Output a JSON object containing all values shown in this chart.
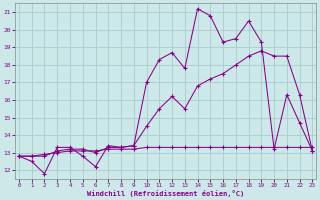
{
  "background_color": "#cce8e8",
  "grid_color": "#aacccc",
  "line_color": "#880088",
  "x_label": "Windchill (Refroidissement éolien,°C)",
  "x_label_color": "#880088",
  "ylim": [
    11.5,
    21.5
  ],
  "xlim": [
    -0.3,
    23.3
  ],
  "yticks": [
    12,
    13,
    14,
    15,
    16,
    17,
    18,
    19,
    20,
    21
  ],
  "xticks": [
    0,
    1,
    2,
    3,
    4,
    5,
    6,
    7,
    8,
    9,
    10,
    11,
    12,
    13,
    14,
    15,
    16,
    17,
    18,
    19,
    20,
    21,
    22,
    23
  ],
  "series1_x": [
    0,
    1,
    2,
    3,
    4,
    5,
    6,
    7,
    8,
    9,
    10,
    11,
    12,
    13,
    14,
    15,
    16,
    17,
    18,
    19,
    20,
    21,
    22,
    23
  ],
  "series1_y": [
    12.8,
    12.5,
    11.8,
    13.3,
    13.3,
    12.8,
    12.2,
    13.4,
    13.3,
    13.4,
    17.0,
    18.3,
    18.7,
    17.8,
    21.2,
    20.8,
    19.3,
    19.5,
    20.5,
    19.3,
    13.2,
    16.3,
    14.7,
    13.1
  ],
  "series2_x": [
    0,
    1,
    2,
    3,
    4,
    5,
    6,
    7,
    8,
    9,
    10,
    11,
    12,
    13,
    14,
    15,
    16,
    17,
    18,
    19,
    20,
    21,
    22,
    23
  ],
  "series2_y": [
    12.8,
    12.8,
    12.8,
    13.1,
    13.2,
    13.2,
    13.0,
    13.3,
    13.3,
    13.4,
    14.5,
    15.5,
    16.2,
    15.5,
    16.8,
    17.2,
    17.5,
    18.0,
    18.5,
    18.8,
    18.5,
    18.5,
    16.3,
    13.1
  ],
  "series3_x": [
    0,
    1,
    2,
    3,
    4,
    5,
    6,
    7,
    8,
    9,
    10,
    11,
    12,
    13,
    14,
    15,
    16,
    17,
    18,
    19,
    20,
    21,
    22,
    23
  ],
  "series3_y": [
    12.8,
    12.8,
    12.9,
    13.0,
    13.1,
    13.1,
    13.1,
    13.2,
    13.2,
    13.2,
    13.3,
    13.3,
    13.3,
    13.3,
    13.3,
    13.3,
    13.3,
    13.3,
    13.3,
    13.3,
    13.3,
    13.3,
    13.3,
    13.3
  ]
}
